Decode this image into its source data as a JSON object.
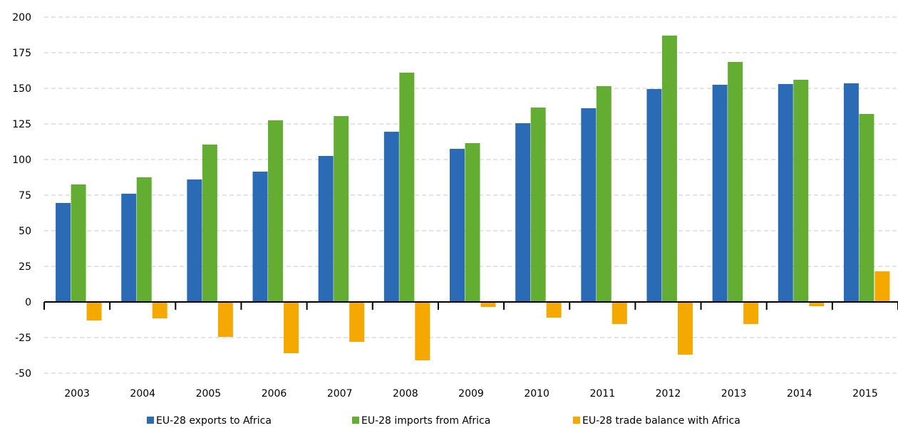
{
  "chart_data": {
    "type": "bar",
    "title": "",
    "xlabel": "",
    "ylabel": "",
    "ylim": [
      -50,
      200
    ],
    "yticks": [
      200,
      175,
      150,
      125,
      100,
      75,
      50,
      25,
      0,
      -25,
      -50
    ],
    "grid": true,
    "legend_position": "bottom",
    "categories": [
      "2003",
      "2004",
      "2005",
      "2006",
      "2007",
      "2008",
      "2009",
      "2010",
      "2011",
      "2012",
      "2013",
      "2014",
      "2015"
    ],
    "series": [
      {
        "name": "EU-28 exports to Africa",
        "color": "#2b6bb5",
        "values": [
          69.5,
          76,
          86,
          91.5,
          102.5,
          119.5,
          107.5,
          125.5,
          136,
          149.5,
          152.5,
          153,
          153.5
        ]
      },
      {
        "name": "EU-28 imports from Africa",
        "color": "#64ad33",
        "values": [
          82.5,
          87.5,
          110.5,
          127.5,
          130.5,
          161,
          111.5,
          136.5,
          151.5,
          187,
          168.5,
          156,
          132
        ]
      },
      {
        "name": "EU-28 trade balance with Africa",
        "color": "#f5a800",
        "values": [
          -13,
          -11.5,
          -24.5,
          -36,
          -28,
          -41,
          -3.5,
          -11,
          -15.5,
          -37,
          -15.5,
          -3,
          21.5
        ]
      }
    ]
  }
}
